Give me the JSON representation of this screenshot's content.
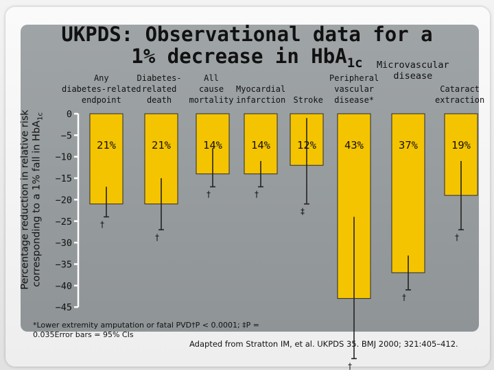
{
  "title": {
    "line1": "UKPDS: Observational data for a",
    "line2_main": "1% decrease in Hb",
    "line2_A": "A",
    "line2_sub": "1c"
  },
  "ylabel": {
    "line1": "Percentage reduction in relative risk",
    "line2_main": "corresponding to a 1% fall in HbA",
    "line2_sub": "1c"
  },
  "chart_data": {
    "type": "bar",
    "categories": [
      "Any\ndiabetes-related\nendpoint",
      "Diabetes-\nrelated\ndeath",
      "All\ncause\nmortality",
      "Myocardial\ninfarction",
      "Stroke",
      "Peripheral\nvascular\ndisease*",
      "Microvascular\ndisease",
      "Cataract\nextraction"
    ],
    "values": [
      -21,
      -21,
      -14,
      -14,
      -12,
      -43,
      -37,
      -19
    ],
    "value_labels": [
      "21%",
      "21%",
      "14%",
      "14%",
      "12%",
      "43%",
      "37%",
      "19%"
    ],
    "ci_low": [
      -24,
      -27,
      -17,
      -17,
      -21,
      -57,
      -41,
      -27
    ],
    "ci_high": [
      -17,
      -15,
      -8,
      -11,
      -1,
      -24,
      -33,
      -11
    ],
    "significance": [
      "†",
      "†",
      "†",
      "†",
      "‡",
      "†",
      "†",
      "†"
    ],
    "ylim": [
      -45,
      0
    ],
    "yticks": [
      0,
      -5,
      -10,
      -15,
      -20,
      -25,
      -30,
      -35,
      -40,
      -45
    ],
    "ytick_labels": [
      "0",
      "−5",
      "−10",
      "−15",
      "−20",
      "−25",
      "−30",
      "−35",
      "−40",
      "−45"
    ],
    "colors": {
      "bar": "#f5c400",
      "bar_edge": "#2a2a2a",
      "error": "#222222"
    }
  },
  "footnote": "*Lower extremity amputation or fatal PVD†P < 0.0001; ‡P = 0.035Error bars = 95% CIs",
  "source": "Adapted from Stratton IM, et al. UKPDS 35. BMJ 2000; 321:405–412."
}
